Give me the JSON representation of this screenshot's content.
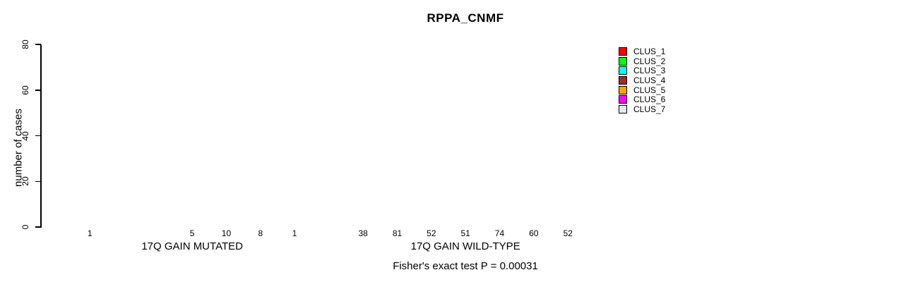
{
  "chart_data": {
    "type": "bar",
    "title": "RPPA_CNMF",
    "ylabel": "number of cases",
    "xlabel": "",
    "ylim": [
      0,
      80
    ],
    "yticks": [
      0,
      20,
      40,
      60,
      80
    ],
    "grid": false,
    "legend_position": "right",
    "clusters": [
      {
        "name": "CLUS_1",
        "color": "#ff0000"
      },
      {
        "name": "CLUS_2",
        "color": "#00ff00"
      },
      {
        "name": "CLUS_3",
        "color": "#00ffff"
      },
      {
        "name": "CLUS_4",
        "color": "#a52a2a"
      },
      {
        "name": "CLUS_5",
        "color": "#ffa500"
      },
      {
        "name": "CLUS_6",
        "color": "#ff00ff"
      },
      {
        "name": "CLUS_7",
        "color": "#e6e6fa"
      }
    ],
    "groups": [
      {
        "label": "17Q GAIN MUTATED",
        "values": [
          1,
          0,
          0,
          5,
          10,
          8,
          1
        ],
        "value_labels": [
          "1",
          "",
          "",
          "5",
          "10",
          "8",
          "1"
        ]
      },
      {
        "label": "17Q GAIN WILD-TYPE",
        "values": [
          38,
          81,
          52,
          51,
          74,
          60,
          52
        ],
        "value_labels": [
          "38",
          "81",
          "52",
          "51",
          "74",
          "60",
          "52"
        ]
      }
    ],
    "footnote": "Fisher's exact test P = 0.00031"
  }
}
